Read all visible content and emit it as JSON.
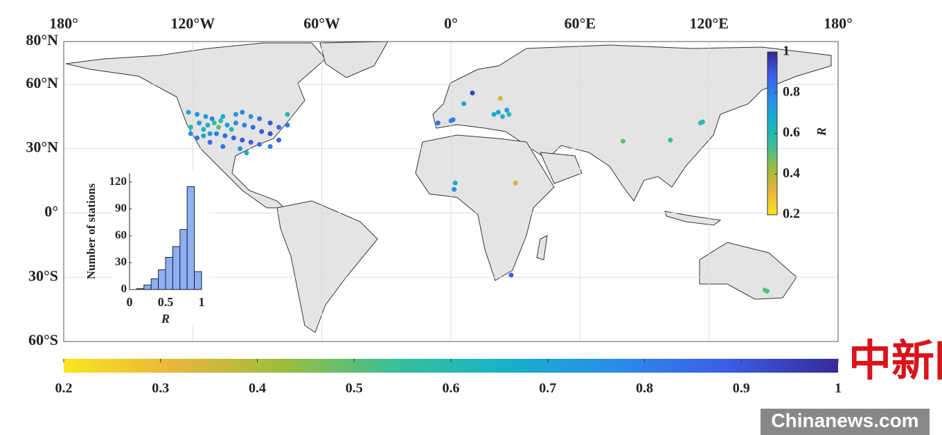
{
  "chart_data": [
    {
      "type": "scatter",
      "x": [
        -122,
        -118,
        -114,
        -111,
        -106,
        -100,
        -97,
        -93,
        -89,
        -84,
        -80,
        -76,
        -121,
        -117,
        -113,
        -110,
        -108,
        -104,
        -100,
        -96,
        -92,
        -88,
        -84,
        -80,
        -121,
        -118,
        -115,
        -112,
        -109,
        -105,
        -101,
        -97,
        -93,
        -89,
        -84,
        -112,
        -106,
        -98,
        -95,
        -102,
        -107,
        -115,
        -76,
        -6,
        0,
        1,
        6,
        10,
        20,
        22,
        24,
        26,
        27,
        23,
        80,
        102,
        116,
        117,
        2,
        1.5,
        30,
        28,
        146,
        147
      ],
      "y": [
        47,
        46,
        45,
        44,
        45,
        46,
        47,
        45,
        44,
        42,
        40,
        41,
        40,
        42,
        41,
        42,
        40,
        41,
        42,
        41,
        40,
        38,
        37,
        34,
        37,
        35,
        36,
        37,
        37,
        36,
        35,
        34,
        33,
        32,
        31,
        33,
        31,
        30,
        28,
        39,
        43,
        39,
        46,
        42,
        43,
        43.5,
        51,
        56,
        46,
        47,
        45,
        48,
        46,
        53.5,
        33.5,
        34,
        42,
        42.5,
        14,
        11,
        14,
        -29,
        -36,
        -36.5
      ],
      "values": [
        0.7,
        0.75,
        0.72,
        0.8,
        0.7,
        0.75,
        0.8,
        0.72,
        0.85,
        0.9,
        0.85,
        0.82,
        0.6,
        0.72,
        0.65,
        0.55,
        0.5,
        0.72,
        0.78,
        0.8,
        0.84,
        0.9,
        0.92,
        0.88,
        0.75,
        0.82,
        0.7,
        0.74,
        0.8,
        0.85,
        0.87,
        0.9,
        0.88,
        0.85,
        0.8,
        0.85,
        0.83,
        0.75,
        0.68,
        0.6,
        0.58,
        0.63,
        0.6,
        0.85,
        0.78,
        0.8,
        0.72,
        0.95,
        0.68,
        0.7,
        0.65,
        0.72,
        0.6,
        0.35,
        0.5,
        0.55,
        0.55,
        0.6,
        0.68,
        0.75,
        0.35,
        0.88,
        0.5,
        0.52
      ],
      "xlim": [
        -180,
        180
      ],
      "ylim": [
        -60,
        80
      ],
      "xticks": [
        {
          "value": -180,
          "label": "180°"
        },
        {
          "value": -120,
          "label": "120°W"
        },
        {
          "value": -60,
          "label": "60°W"
        },
        {
          "value": 0,
          "label": "0°"
        },
        {
          "value": 60,
          "label": "60°E"
        },
        {
          "value": 120,
          "label": "120°E"
        },
        {
          "value": 180,
          "label": "180°"
        }
      ],
      "yticks": [
        {
          "value": 80,
          "label": "80°N"
        },
        {
          "value": 60,
          "label": "60°N"
        },
        {
          "value": 30,
          "label": "30°N"
        },
        {
          "value": 0,
          "label": "0°"
        },
        {
          "value": -30,
          "label": "30°S"
        },
        {
          "value": -60,
          "label": "60°S"
        }
      ],
      "grid": true,
      "colorlim": [
        0.2,
        1
      ],
      "colormap": [
        "#f9e51f",
        "#e8b63c",
        "#9cbd3c",
        "#38bf9a",
        "#17b2c8",
        "#2a8ce8",
        "#3c5de6",
        "#352a96"
      ],
      "colorticks": [
        0.2,
        0.3,
        0.4,
        0.5,
        0.6,
        0.7,
        0.8,
        0.9,
        1
      ],
      "colorticks_vertical": [
        0.2,
        0.4,
        0.6,
        0.8,
        1
      ],
      "colorbar_label": "R"
    },
    {
      "type": "histogram",
      "bins": [
        0.1,
        0.2,
        0.3,
        0.4,
        0.5,
        0.6,
        0.7,
        0.8,
        0.9,
        1.0
      ],
      "values": [
        1,
        5,
        12,
        22,
        36,
        48,
        67,
        115,
        20
      ],
      "color": "#8fb0ee",
      "xlim": [
        0,
        1
      ],
      "ylim": [
        0,
        130
      ],
      "xticks": [
        0,
        0.5,
        1
      ],
      "yticks": [
        0,
        30,
        60,
        90,
        120
      ],
      "xlabel": "R",
      "ylabel": "Number of stations"
    }
  ],
  "watermark": {
    "logo": "中新网",
    "site": "Chinanews.com"
  }
}
